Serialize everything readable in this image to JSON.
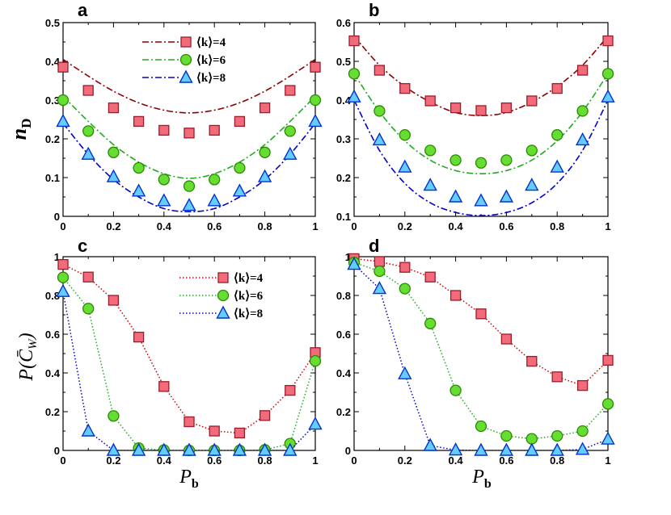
{
  "chart_data": [
    {
      "panel": "a",
      "type": "scatter",
      "title": "a",
      "ylabel": "n_D",
      "xlabel": "",
      "xlim": [
        0,
        1
      ],
      "ylim": [
        0,
        0.5
      ],
      "xticks": [
        "0",
        "0.2",
        "0.4",
        "0.6",
        "0.8",
        "1"
      ],
      "yticks": [
        "0",
        "0.1",
        "0.2",
        "0.3",
        "0.4",
        "0.5"
      ],
      "legend_position": "top-center",
      "x": [
        0,
        0.1,
        0.2,
        0.3,
        0.4,
        0.5,
        0.6,
        0.7,
        0.8,
        0.9,
        1
      ],
      "series": [
        {
          "name": "⟨k⟩=4",
          "marker": "square",
          "fill": "#f26b7a",
          "stroke": "#9b1c2a",
          "line_color": "#8b0000",
          "values": [
            0.385,
            0.325,
            0.28,
            0.245,
            0.222,
            0.215,
            0.222,
            0.245,
            0.28,
            0.325,
            0.385
          ],
          "fit": [
            0.405,
            0.362,
            0.323,
            0.293,
            0.274,
            0.267,
            0.274,
            0.293,
            0.323,
            0.362,
            0.405
          ]
        },
        {
          "name": "⟨k⟩=6",
          "marker": "circle",
          "fill": "#66dd33",
          "stroke": "#2b8a00",
          "line_color": "#22aa22",
          "values": [
            0.3,
            0.22,
            0.165,
            0.125,
            0.095,
            0.078,
            0.095,
            0.125,
            0.165,
            0.22,
            0.3
          ],
          "fit": [
            0.31,
            0.245,
            0.185,
            0.14,
            0.11,
            0.098,
            0.11,
            0.14,
            0.185,
            0.245,
            0.31
          ]
        },
        {
          "name": "⟨k⟩=8",
          "marker": "triangle",
          "fill": "#66ccff",
          "stroke": "#0033cc",
          "line_color": "#0000cc",
          "values": [
            0.245,
            0.16,
            0.102,
            0.065,
            0.04,
            0.028,
            0.04,
            0.065,
            0.102,
            0.16,
            0.245
          ],
          "fit": [
            0.24,
            0.16,
            0.095,
            0.05,
            0.02,
            0.012,
            0.02,
            0.05,
            0.095,
            0.16,
            0.24
          ]
        }
      ]
    },
    {
      "panel": "b",
      "type": "scatter",
      "title": "b",
      "ylabel": "",
      "xlabel": "",
      "xlim": [
        0,
        1
      ],
      "ylim": [
        0.1,
        0.6
      ],
      "xticks": [
        "0",
        "0.2",
        "0.4",
        "0.6",
        "0.8",
        "1"
      ],
      "yticks": [
        "0.1",
        "0.2",
        "0.3",
        "0.4",
        "0.5",
        "0.6"
      ],
      "x": [
        0,
        0.1,
        0.2,
        0.3,
        0.4,
        0.5,
        0.6,
        0.7,
        0.8,
        0.9,
        1
      ],
      "series": [
        {
          "name": "⟨k⟩=4",
          "marker": "square",
          "fill": "#f26b7a",
          "stroke": "#9b1c2a",
          "line_color": "#8b0000",
          "values": [
            0.553,
            0.477,
            0.43,
            0.398,
            0.38,
            0.373,
            0.38,
            0.398,
            0.43,
            0.477,
            0.553
          ],
          "fit": [
            0.565,
            0.49,
            0.435,
            0.395,
            0.368,
            0.36,
            0.368,
            0.395,
            0.435,
            0.49,
            0.565
          ]
        },
        {
          "name": "⟨k⟩=6",
          "marker": "circle",
          "fill": "#66dd33",
          "stroke": "#2b8a00",
          "line_color": "#22aa22",
          "values": [
            0.468,
            0.372,
            0.31,
            0.27,
            0.245,
            0.238,
            0.245,
            0.27,
            0.31,
            0.372,
            0.468
          ],
          "fit": [
            0.468,
            0.37,
            0.295,
            0.245,
            0.218,
            0.21,
            0.218,
            0.245,
            0.295,
            0.37,
            0.468
          ]
        },
        {
          "name": "⟨k⟩=8",
          "marker": "triangle",
          "fill": "#66ccff",
          "stroke": "#0033cc",
          "line_color": "#0000cc",
          "values": [
            0.408,
            0.297,
            0.227,
            0.18,
            0.15,
            0.14,
            0.15,
            0.18,
            0.227,
            0.297,
            0.408
          ],
          "fit": [
            0.4,
            0.27,
            0.185,
            0.135,
            0.11,
            0.102,
            0.11,
            0.135,
            0.185,
            0.27,
            0.4
          ]
        }
      ]
    },
    {
      "panel": "c",
      "type": "line",
      "title": "c",
      "ylabel": "P(C̄_W)",
      "xlabel": "P_b",
      "xlim": [
        0,
        1
      ],
      "ylim": [
        0,
        1
      ],
      "xticks": [
        "0",
        "0.2",
        "0.4",
        "0.6",
        "0.8",
        "1"
      ],
      "yticks": [
        "0",
        "0.2",
        "0.4",
        "0.6",
        "0.8",
        "1"
      ],
      "legend_position": "top-center",
      "x": [
        0,
        0.1,
        0.2,
        0.3,
        0.4,
        0.5,
        0.6,
        0.7,
        0.8,
        0.9,
        1
      ],
      "series": [
        {
          "name": "⟨k⟩=4",
          "marker": "square",
          "fill": "#f26b7a",
          "stroke": "#9b1c2a",
          "line_color": "#cc0000",
          "values": [
            0.96,
            0.895,
            0.775,
            0.585,
            0.33,
            0.148,
            0.1,
            0.09,
            0.18,
            0.31,
            0.505
          ]
        },
        {
          "name": "⟨k⟩=6",
          "marker": "circle",
          "fill": "#66dd33",
          "stroke": "#2b8a00",
          "line_color": "#22aa22",
          "values": [
            0.893,
            0.732,
            0.178,
            0.012,
            0.002,
            0.0,
            0.0,
            0.0,
            0.003,
            0.035,
            0.462
          ]
        },
        {
          "name": "⟨k⟩=8",
          "marker": "triangle",
          "fill": "#66ccff",
          "stroke": "#0033cc",
          "line_color": "#0000cc",
          "values": [
            0.82,
            0.1,
            0.0,
            0.0,
            0.0,
            0.0,
            0.0,
            0.0,
            0.0,
            0.0,
            0.135
          ]
        }
      ]
    },
    {
      "panel": "d",
      "type": "line",
      "title": "d",
      "ylabel": "",
      "xlabel": "P_b",
      "xlim": [
        0,
        1
      ],
      "ylim": [
        0,
        1
      ],
      "xticks": [
        "0",
        "0.2",
        "0.4",
        "0.6",
        "0.8",
        "1"
      ],
      "yticks": [
        "0",
        "0.2",
        "0.4",
        "0.6",
        "0.8",
        "1"
      ],
      "x": [
        0,
        0.1,
        0.2,
        0.3,
        0.4,
        0.5,
        0.6,
        0.7,
        0.8,
        0.9,
        1
      ],
      "series": [
        {
          "name": "⟨k⟩=4",
          "marker": "square",
          "fill": "#f26b7a",
          "stroke": "#9b1c2a",
          "line_color": "#cc0000",
          "values": [
            0.99,
            0.975,
            0.945,
            0.895,
            0.8,
            0.705,
            0.575,
            0.46,
            0.38,
            0.335,
            0.465
          ]
        },
        {
          "name": "⟨k⟩=6",
          "marker": "circle",
          "fill": "#66dd33",
          "stroke": "#2b8a00",
          "line_color": "#22aa22",
          "values": [
            0.97,
            0.925,
            0.835,
            0.655,
            0.31,
            0.125,
            0.075,
            0.06,
            0.075,
            0.1,
            0.24
          ]
        },
        {
          "name": "⟨k⟩=8",
          "marker": "triangle",
          "fill": "#66ccff",
          "stroke": "#0033cc",
          "line_color": "#0000cc",
          "values": [
            0.96,
            0.835,
            0.395,
            0.025,
            0.002,
            0.0,
            0.0,
            0.0,
            0.0,
            0.005,
            0.058
          ]
        }
      ]
    }
  ]
}
